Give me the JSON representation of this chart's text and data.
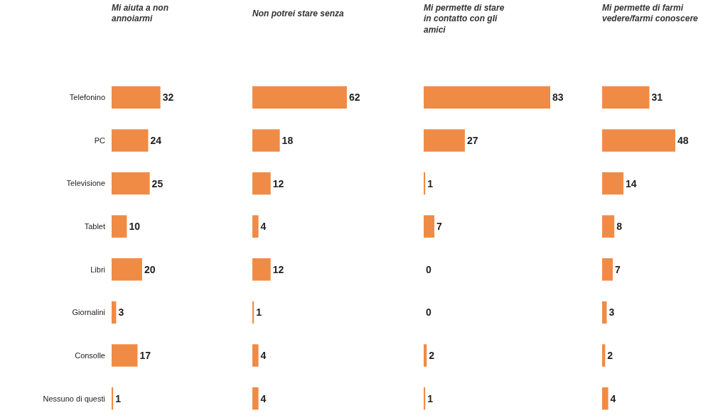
{
  "chart_data": [
    {
      "type": "bar",
      "orientation": "horizontal",
      "title": "Mi aiuta a non annoiarmi",
      "categories": [
        "Telefonino",
        "PC",
        "Televisione",
        "Tablet",
        "Libri",
        "Giornalini",
        "Consolle",
        "Nessuno di questi"
      ],
      "values": [
        32,
        24,
        25,
        10,
        20,
        3,
        17,
        1
      ],
      "color": "#f08b45",
      "data_labels": true,
      "tick_labels": "y"
    },
    {
      "type": "bar",
      "orientation": "horizontal",
      "title": "Non potrei stare senza",
      "categories": [
        null,
        null,
        null,
        null,
        null,
        null,
        null,
        null
      ],
      "values": [
        62,
        18,
        12,
        4,
        12,
        1,
        4,
        4
      ],
      "color": "#f08b45",
      "data_labels": true,
      "tick_labels": false
    },
    {
      "type": "bar",
      "orientation": "horizontal",
      "title": "Mi permette di stare in contatto con gli amici",
      "categories": [
        null,
        null,
        null,
        null,
        null,
        null,
        null,
        null
      ],
      "values": [
        83,
        27,
        1,
        7,
        0,
        0,
        2,
        1
      ],
      "color": "#f08b45",
      "data_labels": true,
      "tick_labels": false
    },
    {
      "type": "bar",
      "orientation": "horizontal",
      "title": "Mi permette di farmi vedere/farmi conoscere",
      "categories": [
        null,
        null,
        null,
        null,
        null,
        null,
        null,
        null
      ],
      "values": [
        31,
        48,
        14,
        8,
        7,
        3,
        2,
        4
      ],
      "color": "#f08b45",
      "data_labels": true,
      "tick_labels": false
    }
  ]
}
